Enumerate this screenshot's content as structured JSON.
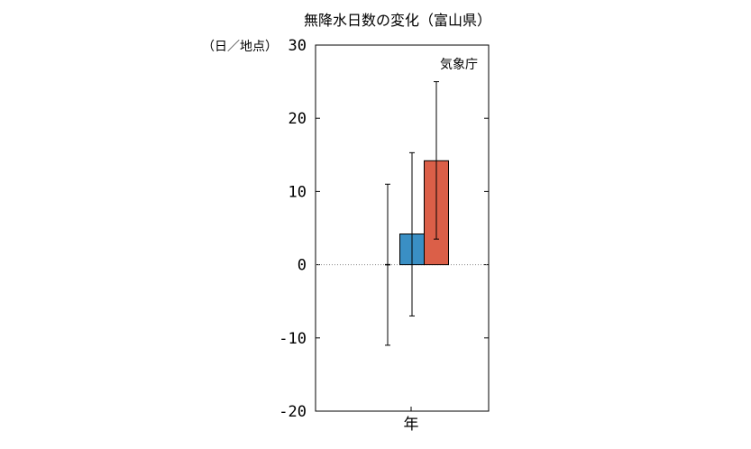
{
  "chart_data": {
    "type": "bar",
    "title": "無降水日数の変化（富山県）",
    "ylabel": "（日／地点）",
    "source_label": "気象庁",
    "categories": [
      "年"
    ],
    "ylim": [
      -20,
      30
    ],
    "yticks": [
      30,
      20,
      10,
      0,
      -10,
      -20
    ],
    "zero_line": "dotted",
    "series": [
      {
        "values": [
          0
        ],
        "error_low": [
          -11
        ],
        "error_high": [
          11
        ],
        "color": "#000000"
      },
      {
        "values": [
          4.2
        ],
        "error_low": [
          -7
        ],
        "error_high": [
          15.3
        ],
        "color": "#3a8fc4"
      },
      {
        "values": [
          14.2
        ],
        "error_low": [
          3.5
        ],
        "error_high": [
          25
        ],
        "color": "#db5f48"
      }
    ]
  }
}
